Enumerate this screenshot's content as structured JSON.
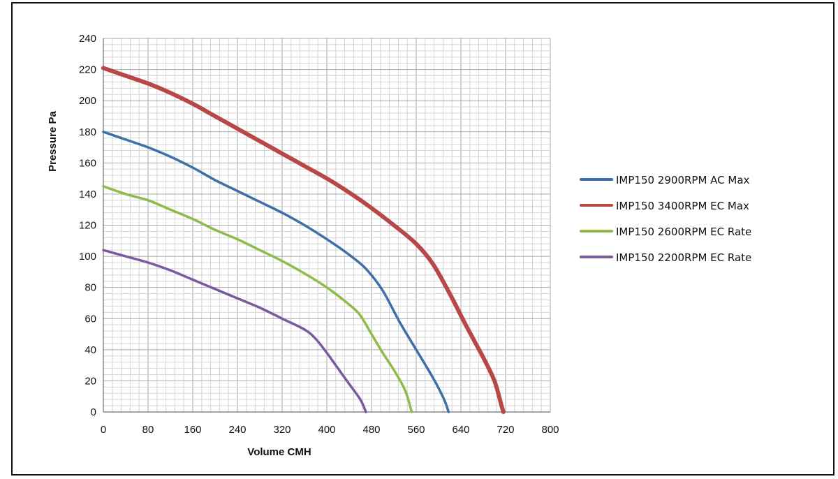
{
  "chart_data": {
    "type": "line",
    "title": "",
    "xlabel": "Volume CMH",
    "ylabel": "Pressure Pa",
    "xlim": [
      0,
      800
    ],
    "ylim": [
      0,
      240
    ],
    "x_ticks": [
      "0",
      "80",
      "160",
      "240",
      "320",
      "400",
      "480",
      "560",
      "640",
      "720",
      "800"
    ],
    "y_ticks": [
      "0",
      "20",
      "40",
      "60",
      "80",
      "100",
      "120",
      "140",
      "160",
      "180",
      "200",
      "220",
      "240"
    ],
    "grid": true,
    "legend_position": "right",
    "series": [
      {
        "name": "IMP150 2900RPM AC Max",
        "color": "#3e6fa8",
        "points": [
          [
            0,
            180
          ],
          [
            40,
            175
          ],
          [
            80,
            170
          ],
          [
            120,
            164
          ],
          [
            160,
            157
          ],
          [
            200,
            149
          ],
          [
            240,
            142
          ],
          [
            280,
            135
          ],
          [
            320,
            128
          ],
          [
            360,
            120
          ],
          [
            400,
            111
          ],
          [
            440,
            101
          ],
          [
            470,
            92
          ],
          [
            500,
            78
          ],
          [
            530,
            58
          ],
          [
            560,
            40
          ],
          [
            590,
            22
          ],
          [
            610,
            8
          ],
          [
            618,
            0
          ]
        ]
      },
      {
        "name": "IMP150 3400RPM EC Max",
        "color": "#b84848",
        "points": [
          [
            0,
            221
          ],
          [
            40,
            216
          ],
          [
            80,
            211
          ],
          [
            120,
            205
          ],
          [
            160,
            198
          ],
          [
            200,
            190
          ],
          [
            240,
            182
          ],
          [
            280,
            174
          ],
          [
            320,
            166
          ],
          [
            360,
            158
          ],
          [
            400,
            150
          ],
          [
            440,
            141
          ],
          [
            480,
            131
          ],
          [
            520,
            120
          ],
          [
            560,
            108
          ],
          [
            590,
            95
          ],
          [
            620,
            76
          ],
          [
            650,
            55
          ],
          [
            680,
            35
          ],
          [
            700,
            20
          ],
          [
            712,
            5
          ],
          [
            716,
            0
          ]
        ]
      },
      {
        "name": "IMP150 2600RPM EC Rate",
        "color": "#8ebb4a",
        "points": [
          [
            0,
            145
          ],
          [
            40,
            140
          ],
          [
            80,
            136
          ],
          [
            120,
            130
          ],
          [
            160,
            124
          ],
          [
            200,
            117
          ],
          [
            240,
            111
          ],
          [
            280,
            104
          ],
          [
            320,
            97
          ],
          [
            360,
            89
          ],
          [
            400,
            80
          ],
          [
            440,
            69
          ],
          [
            460,
            62
          ],
          [
            480,
            50
          ],
          [
            500,
            38
          ],
          [
            520,
            27
          ],
          [
            540,
            14
          ],
          [
            552,
            0
          ]
        ]
      },
      {
        "name": "IMP150 2200RPM EC Rate",
        "color": "#7a5a9e",
        "points": [
          [
            0,
            104
          ],
          [
            40,
            100
          ],
          [
            80,
            96
          ],
          [
            120,
            91
          ],
          [
            160,
            85
          ],
          [
            200,
            79
          ],
          [
            240,
            73
          ],
          [
            280,
            67
          ],
          [
            320,
            60
          ],
          [
            360,
            53
          ],
          [
            380,
            47
          ],
          [
            400,
            38
          ],
          [
            420,
            28
          ],
          [
            440,
            18
          ],
          [
            460,
            8
          ],
          [
            470,
            0
          ]
        ]
      }
    ]
  }
}
